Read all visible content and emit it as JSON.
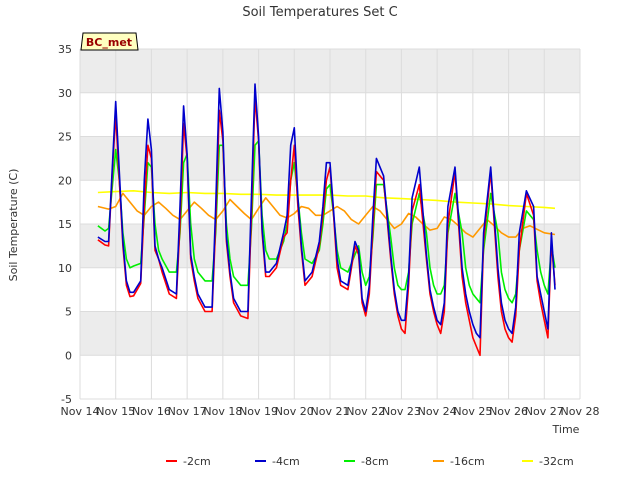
{
  "chart_data": {
    "type": "line",
    "title": "Soil Temperatures Set C",
    "xlabel": "Time",
    "ylabel": "Soil Temperature (C)",
    "ylim": [
      -5,
      35
    ],
    "xlim": [
      0,
      14
    ],
    "yticks": [
      -5,
      0,
      5,
      10,
      15,
      20,
      25,
      30,
      35
    ],
    "xtick_labels": [
      "Nov 14",
      "Nov 15",
      "Nov 16",
      "Nov 17",
      "Nov 18",
      "Nov 19",
      "Nov 20",
      "Nov 21",
      "Nov 22",
      "Nov 23",
      "Nov 24",
      "Nov 25",
      "Nov 26",
      "Nov 27",
      "Nov 28"
    ],
    "x_unit": "days since Nov 14",
    "station_label": "BC_met",
    "grid": true,
    "legend_position": "bottom",
    "series": [
      {
        "name": "-2cm",
        "color": "#ff0000",
        "x": [
          0.5,
          0.7,
          0.8,
          0.9,
          1.0,
          1.1,
          1.2,
          1.3,
          1.4,
          1.5,
          1.7,
          1.8,
          1.9,
          2.0,
          2.1,
          2.2,
          2.3,
          2.5,
          2.7,
          2.8,
          2.9,
          3.0,
          3.1,
          3.2,
          3.3,
          3.5,
          3.7,
          3.8,
          3.9,
          4.0,
          4.1,
          4.2,
          4.3,
          4.5,
          4.7,
          4.8,
          4.9,
          5.0,
          5.1,
          5.2,
          5.3,
          5.5,
          5.7,
          5.8,
          5.9,
          6.0,
          6.1,
          6.2,
          6.3,
          6.5,
          6.7,
          6.8,
          6.9,
          7.0,
          7.1,
          7.2,
          7.3,
          7.5,
          7.7,
          7.8,
          7.9,
          8.0,
          8.1,
          8.2,
          8.3,
          8.5,
          8.7,
          8.8,
          8.9,
          9.0,
          9.1,
          9.2,
          9.3,
          9.5,
          9.7,
          9.8,
          9.9,
          10.0,
          10.1,
          10.2,
          10.3,
          10.5,
          10.7,
          10.8,
          10.9,
          11.0,
          11.1,
          11.2,
          11.3,
          11.5,
          11.7,
          11.8,
          11.9,
          12.0,
          12.1,
          12.2,
          12.3,
          12.5,
          12.7,
          12.8,
          12.9,
          13.0,
          13.1,
          13.2,
          13.3
        ],
        "y": [
          13.2,
          12.6,
          12.5,
          20.5,
          27.5,
          20.0,
          12.5,
          8.0,
          6.7,
          6.8,
          8.2,
          17.0,
          24.0,
          22.5,
          12.0,
          11.0,
          9.5,
          7.0,
          6.5,
          15.0,
          26.5,
          22.5,
          11.0,
          8.5,
          6.5,
          5.0,
          5.0,
          15.0,
          28.0,
          24.5,
          13.0,
          9.0,
          6.0,
          4.5,
          4.2,
          16.0,
          29.5,
          24.5,
          14.0,
          9.0,
          9.0,
          10.0,
          13.5,
          14.0,
          20.0,
          24.0,
          17.0,
          12.0,
          8.0,
          9.0,
          12.5,
          16.0,
          20.0,
          21.5,
          16.0,
          10.0,
          8.0,
          7.5,
          12.5,
          11.5,
          6.0,
          4.5,
          7.0,
          14.5,
          21.0,
          20.0,
          11.0,
          7.0,
          4.5,
          3.0,
          2.5,
          8.0,
          16.5,
          19.5,
          11.0,
          7.0,
          5.0,
          3.5,
          2.5,
          5.0,
          15.0,
          21.0,
          9.0,
          6.0,
          4.0,
          2.0,
          1.0,
          0.0,
          13.0,
          21.0,
          9.0,
          5.0,
          3.0,
          2.0,
          1.5,
          4.5,
          12.0,
          18.5,
          16.0,
          8.5,
          6.0,
          4.0,
          2.0,
          13.0,
          8.0
        ]
      },
      {
        "name": "-4cm",
        "color": "#0000cc",
        "x": [
          0.5,
          0.7,
          0.8,
          0.9,
          1.0,
          1.1,
          1.2,
          1.3,
          1.4,
          1.5,
          1.7,
          1.8,
          1.9,
          2.0,
          2.1,
          2.2,
          2.3,
          2.5,
          2.7,
          2.8,
          2.9,
          3.0,
          3.1,
          3.2,
          3.3,
          3.5,
          3.7,
          3.8,
          3.9,
          4.0,
          4.1,
          4.2,
          4.3,
          4.5,
          4.7,
          4.8,
          4.9,
          5.0,
          5.1,
          5.2,
          5.3,
          5.5,
          5.7,
          5.8,
          5.9,
          6.0,
          6.1,
          6.2,
          6.3,
          6.5,
          6.7,
          6.8,
          6.9,
          7.0,
          7.1,
          7.2,
          7.3,
          7.5,
          7.7,
          7.8,
          7.9,
          8.0,
          8.1,
          8.2,
          8.3,
          8.5,
          8.7,
          8.8,
          8.9,
          9.0,
          9.1,
          9.2,
          9.3,
          9.5,
          9.7,
          9.8,
          9.9,
          10.0,
          10.1,
          10.2,
          10.3,
          10.5,
          10.7,
          10.8,
          10.9,
          11.0,
          11.1,
          11.2,
          11.3,
          11.5,
          11.7,
          11.8,
          11.9,
          12.0,
          12.1,
          12.2,
          12.3,
          12.5,
          12.7,
          12.8,
          12.9,
          13.0,
          13.1,
          13.2,
          13.3
        ],
        "y": [
          13.5,
          13.0,
          13.0,
          21.0,
          29.0,
          21.0,
          13.0,
          8.5,
          7.2,
          7.2,
          8.5,
          20.0,
          27.0,
          23.5,
          12.5,
          11.0,
          10.0,
          7.5,
          7.0,
          17.0,
          28.5,
          23.0,
          11.5,
          9.0,
          7.0,
          5.5,
          5.5,
          17.0,
          30.5,
          25.5,
          13.5,
          9.5,
          6.5,
          5.0,
          5.0,
          18.0,
          31.0,
          25.0,
          14.5,
          9.5,
          9.5,
          10.5,
          14.0,
          16.0,
          24.0,
          26.0,
          18.0,
          12.5,
          8.5,
          9.5,
          13.0,
          17.0,
          22.0,
          22.0,
          16.5,
          11.0,
          8.5,
          8.0,
          13.0,
          12.0,
          6.5,
          5.0,
          8.0,
          16.0,
          22.5,
          20.5,
          11.5,
          7.5,
          5.0,
          4.0,
          4.0,
          9.0,
          18.0,
          21.5,
          11.5,
          7.5,
          5.5,
          4.0,
          3.5,
          6.0,
          17.0,
          21.5,
          10.0,
          7.0,
          5.0,
          3.5,
          2.5,
          2.0,
          14.0,
          21.5,
          10.0,
          6.0,
          4.0,
          3.0,
          2.5,
          5.5,
          14.0,
          18.8,
          17.0,
          9.0,
          7.0,
          5.0,
          3.0,
          14.0,
          7.5
        ]
      },
      {
        "name": "-8cm",
        "color": "#00ee00",
        "x": [
          0.5,
          0.7,
          0.8,
          0.9,
          1.0,
          1.1,
          1.2,
          1.3,
          1.4,
          1.5,
          1.7,
          1.8,
          1.9,
          2.0,
          2.1,
          2.2,
          2.3,
          2.5,
          2.7,
          2.8,
          2.9,
          3.0,
          3.1,
          3.2,
          3.3,
          3.5,
          3.7,
          3.8,
          3.9,
          4.0,
          4.1,
          4.2,
          4.3,
          4.5,
          4.7,
          4.8,
          4.9,
          5.0,
          5.1,
          5.2,
          5.3,
          5.5,
          5.7,
          5.8,
          5.9,
          6.0,
          6.1,
          6.2,
          6.3,
          6.5,
          6.7,
          6.8,
          6.9,
          7.0,
          7.1,
          7.2,
          7.3,
          7.5,
          7.7,
          7.8,
          7.9,
          8.0,
          8.1,
          8.2,
          8.3,
          8.5,
          8.7,
          8.8,
          8.9,
          9.0,
          9.1,
          9.2,
          9.3,
          9.5,
          9.7,
          9.8,
          9.9,
          10.0,
          10.1,
          10.2,
          10.3,
          10.5,
          10.7,
          10.8,
          10.9,
          11.0,
          11.1,
          11.2,
          11.3,
          11.5,
          11.7,
          11.8,
          11.9,
          12.0,
          12.1,
          12.2,
          12.3,
          12.5,
          12.7,
          12.8,
          12.9,
          13.0,
          13.1,
          13.2,
          13.3
        ],
        "y": [
          14.8,
          14.2,
          14.5,
          19.0,
          23.5,
          20.0,
          14.0,
          11.0,
          10.0,
          10.2,
          10.5,
          16.0,
          22.0,
          21.5,
          15.0,
          12.0,
          11.0,
          9.5,
          9.5,
          14.0,
          22.0,
          23.0,
          15.0,
          11.0,
          9.5,
          8.5,
          8.5,
          14.0,
          24.0,
          24.0,
          15.0,
          11.0,
          9.0,
          8.0,
          8.0,
          14.5,
          24.0,
          24.5,
          16.0,
          12.0,
          11.0,
          11.0,
          13.0,
          15.0,
          20.0,
          22.0,
          18.0,
          14.0,
          11.0,
          10.5,
          12.0,
          15.0,
          19.0,
          19.5,
          16.0,
          12.0,
          10.0,
          9.5,
          11.5,
          12.5,
          9.5,
          8.0,
          9.0,
          13.5,
          19.5,
          19.5,
          13.5,
          10.0,
          8.0,
          7.5,
          7.5,
          9.5,
          15.0,
          18.5,
          14.0,
          10.0,
          8.0,
          7.0,
          7.0,
          8.0,
          14.0,
          18.5,
          14.0,
          10.0,
          8.0,
          7.0,
          6.5,
          6.0,
          12.0,
          18.5,
          14.0,
          9.5,
          7.5,
          6.5,
          6.0,
          7.0,
          12.0,
          16.5,
          15.5,
          12.0,
          9.5,
          8.0,
          7.0,
          12.5,
          10.0
        ]
      },
      {
        "name": "-16cm",
        "color": "#ff9900",
        "x": [
          0.5,
          0.8,
          1.0,
          1.2,
          1.4,
          1.6,
          1.8,
          2.0,
          2.2,
          2.4,
          2.6,
          2.8,
          3.0,
          3.2,
          3.4,
          3.6,
          3.8,
          4.0,
          4.2,
          4.4,
          4.6,
          4.8,
          5.0,
          5.2,
          5.4,
          5.6,
          5.8,
          6.0,
          6.2,
          6.4,
          6.6,
          6.8,
          7.0,
          7.2,
          7.4,
          7.6,
          7.8,
          8.0,
          8.2,
          8.4,
          8.6,
          8.8,
          9.0,
          9.2,
          9.4,
          9.6,
          9.8,
          10.0,
          10.2,
          10.4,
          10.6,
          10.8,
          11.0,
          11.2,
          11.4,
          11.6,
          11.8,
          12.0,
          12.2,
          12.4,
          12.6,
          12.8,
          13.0,
          13.3
        ],
        "y": [
          17.0,
          16.7,
          17.0,
          18.5,
          17.5,
          16.5,
          16.0,
          17.0,
          17.5,
          16.8,
          16.0,
          15.5,
          16.5,
          17.5,
          16.8,
          16.0,
          15.5,
          16.5,
          17.8,
          17.0,
          16.2,
          15.5,
          16.8,
          18.0,
          17.0,
          16.0,
          15.7,
          16.2,
          17.0,
          16.8,
          16.0,
          16.0,
          16.5,
          17.0,
          16.5,
          15.5,
          15.0,
          16.0,
          17.0,
          16.5,
          15.5,
          14.5,
          15.0,
          16.2,
          15.8,
          15.0,
          14.3,
          14.5,
          15.8,
          15.5,
          14.8,
          14.0,
          13.5,
          14.5,
          15.5,
          14.8,
          14.0,
          13.5,
          13.5,
          14.5,
          14.8,
          14.4,
          14.0,
          13.8
        ]
      },
      {
        "name": "-32cm",
        "color": "#ffff00",
        "x": [
          0.5,
          1.0,
          1.5,
          2.0,
          2.5,
          3.0,
          3.5,
          4.0,
          4.5,
          5.0,
          5.5,
          6.0,
          6.5,
          7.0,
          7.5,
          8.0,
          8.5,
          9.0,
          9.5,
          10.0,
          10.5,
          11.0,
          11.5,
          12.0,
          12.5,
          13.0,
          13.3
        ],
        "y": [
          18.6,
          18.7,
          18.8,
          18.6,
          18.5,
          18.6,
          18.5,
          18.5,
          18.4,
          18.4,
          18.3,
          18.3,
          18.3,
          18.3,
          18.2,
          18.2,
          18.0,
          17.9,
          17.8,
          17.7,
          17.5,
          17.4,
          17.3,
          17.1,
          17.0,
          16.9,
          16.8
        ]
      }
    ]
  }
}
